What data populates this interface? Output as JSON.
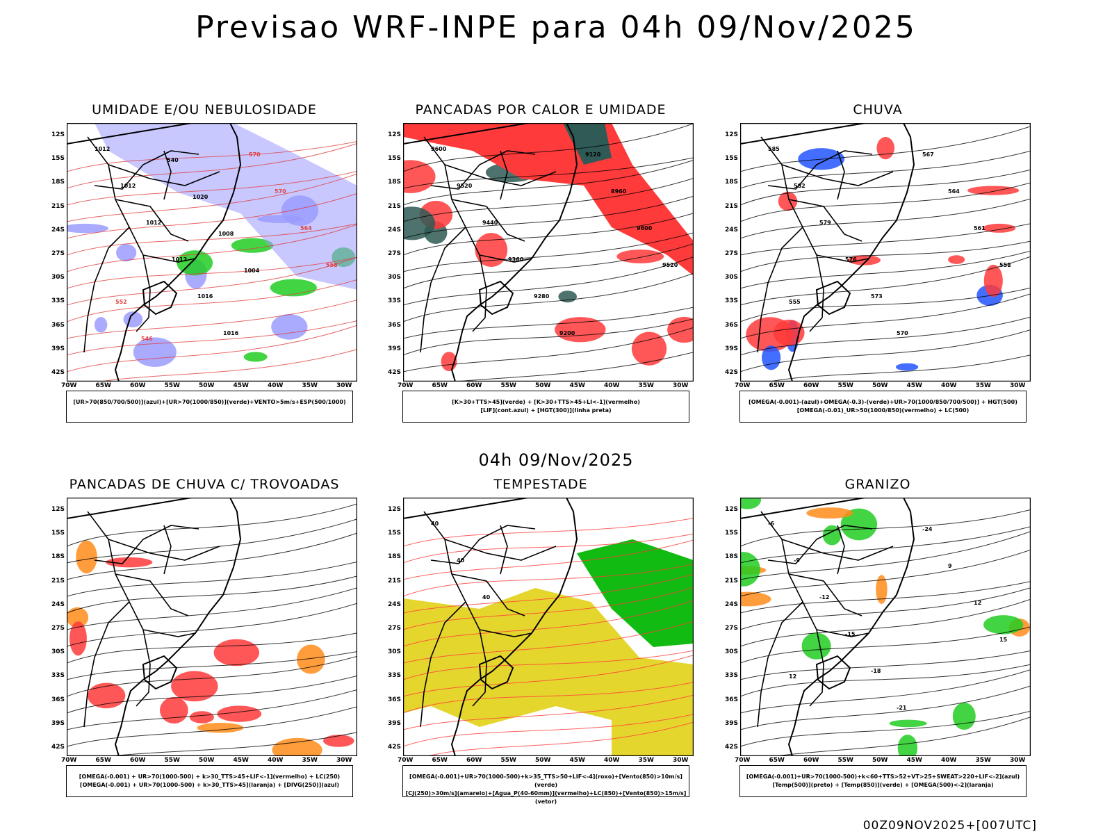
{
  "header": {
    "main_title": "Previsao WRF-INPE  para 04h 09/Nov/2025",
    "sub_title": "04h 09/Nov/2025",
    "footer": "00Z09NOV2025+[007UTC]"
  },
  "axes": {
    "lat_labels": [
      "12S",
      "15S",
      "18S",
      "21S",
      "24S",
      "27S",
      "30S",
      "33S",
      "36S",
      "39S",
      "42S"
    ],
    "lon_labels": [
      "70W",
      "65W",
      "60W",
      "55W",
      "50W",
      "45W",
      "40W",
      "35W",
      "30W"
    ]
  },
  "panels": [
    {
      "id": "umidade",
      "title": "UMIDADE E/OU NEBULOSIDADE",
      "legend_lines": [
        "[UR>70(850/700/500)](azul)+[UR>70(1000/850)](verde)+VENTO>5m/s+ESP(500/1000)"
      ],
      "contour_labels": [
        "1012",
        "1012",
        "1012",
        "1012",
        "1016",
        "1016",
        "570",
        "570",
        "564",
        "558",
        "552",
        "546",
        "540",
        "1020",
        "1008",
        "1004"
      ],
      "colors": {
        "primary": "#9b9bff",
        "secondary": "#22cc22",
        "contour": "#e04040"
      }
    },
    {
      "id": "pancadas-calor",
      "title": "PANCADAS POR CALOR E UMIDADE",
      "legend_lines": [
        "[K>30+TTS>45](verde) + [K>30+TTS>45+LI<-1](vermelho)",
        "[LIF](cont.azul) + [HGT(300)](linha preta)"
      ],
      "contour_labels": [
        "9600",
        "9520",
        "9440",
        "9360",
        "9280",
        "9200",
        "9120",
        "8960",
        "9600",
        "9520"
      ],
      "colors": {
        "primary": "#ff3a3a",
        "secondary": "#2f5a55",
        "contour": "#3333dd"
      }
    },
    {
      "id": "chuva",
      "title": "CHUVA",
      "legend_lines": [
        "[OMEGA(-0.001)-(azul)+OMEGA(-0.3)-(verde)+UR>70(1000/850/700/500)] + HGT(500)",
        "[OMEGA(-0.01)_UR>50(1000/850)(vermelho) + LC(500)"
      ],
      "contour_labels": [
        "585",
        "582",
        "579",
        "576",
        "573",
        "570",
        "567",
        "564",
        "561",
        "558",
        "555"
      ],
      "colors": {
        "primary": "#ff3a3a",
        "secondary": "#2255ff",
        "contour": "#22cc22"
      }
    },
    {
      "id": "trovoadas",
      "title": "PANCADAS DE CHUVA C/ TROVOADAS",
      "legend_lines": [
        "[OMEGA(-0.001) + UR>70(1000-500) + k>30_TTS>45+LIF<-1](vermelho) + LC(250)",
        "[OMEGA(-0.001) + UR>70(1000-500) + k>30_TTS>45](laranja) + [DIVG(250)](azul)"
      ],
      "contour_labels": [],
      "colors": {
        "primary": "#ff3a3a",
        "secondary": "#ff8c1a",
        "contour": "#2255ff"
      }
    },
    {
      "id": "tempestade",
      "title": "TEMPESTADE",
      "legend_lines": [
        "[OMEGA(-0.001)+UR>70(1000-500)+k>35_TTS>50+LIF<-4](roxo)+[Vento(850)>10m/s](verde)",
        "[CJ(250)>30m/s](amarelo)+[Agua_P(40-60mm)](vermelho)+LC(850)+[Vento(850)>15m/s](vetor)"
      ],
      "contour_labels": [
        "40",
        "40",
        "40"
      ],
      "colors": {
        "primary": "#e5d62e",
        "secondary": "#11bb11",
        "contour": "#ff3a3a"
      }
    },
    {
      "id": "granizo",
      "title": "GRANIZO",
      "legend_lines": [
        "[OMEGA(-0.001)+UR>70(1000-500)+k<60+TTS>52+VT>25+SWEAT>220+LIF<-2](azul)",
        "[Temp(500)](preto) + [Temp(850)](verde) + [OMEGA(500)<-2](laranja)"
      ],
      "contour_labels": [
        "-6",
        "-9",
        "-12",
        "-15",
        "-18",
        "-21",
        "-24",
        "9",
        "12",
        "15",
        "12"
      ],
      "colors": {
        "primary": "#22cc22",
        "secondary": "#ff8c1a",
        "contour": "#000000"
      }
    }
  ]
}
